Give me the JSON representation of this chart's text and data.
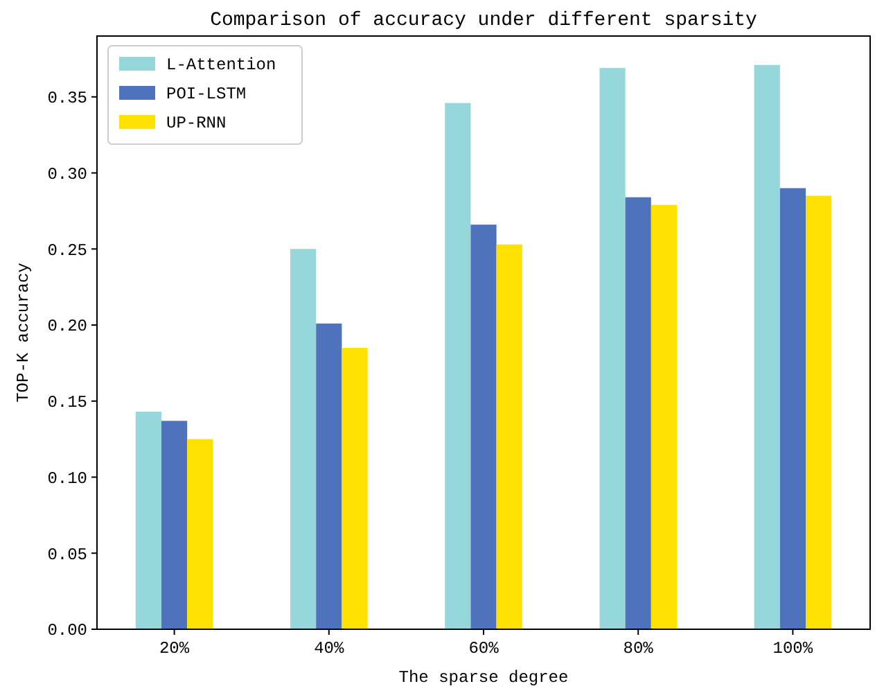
{
  "chart_data": {
    "type": "bar",
    "title": "Comparison of accuracy under different sparsity",
    "xlabel": "The sparse degree",
    "ylabel": "TOP-K accuracy",
    "categories": [
      "20%",
      "40%",
      "60%",
      "80%",
      "100%"
    ],
    "series": [
      {
        "name": "L-Attention",
        "color": "#96d7dc",
        "values": [
          0.143,
          0.25,
          0.346,
          0.369,
          0.371
        ]
      },
      {
        "name": "POI-LSTM",
        "color": "#4f72bd",
        "values": [
          0.137,
          0.201,
          0.266,
          0.284,
          0.29
        ]
      },
      {
        "name": "UP-RNN",
        "color": "#ffe100",
        "values": [
          0.125,
          0.185,
          0.253,
          0.279,
          0.285
        ]
      }
    ],
    "ylim": [
      0,
      0.39
    ],
    "yticks": [
      {
        "value": 0,
        "label": "0.00"
      },
      {
        "value": 0.05,
        "label": "0.05"
      },
      {
        "value": 0.1,
        "label": "0.10"
      },
      {
        "value": 0.15,
        "label": "0.15"
      },
      {
        "value": 0.2,
        "label": "0.20"
      },
      {
        "value": 0.25,
        "label": "0.25"
      },
      {
        "value": 0.3,
        "label": "0.30"
      },
      {
        "value": 0.35,
        "label": "0.35"
      }
    ],
    "legend": "top left",
    "grid": false
  }
}
